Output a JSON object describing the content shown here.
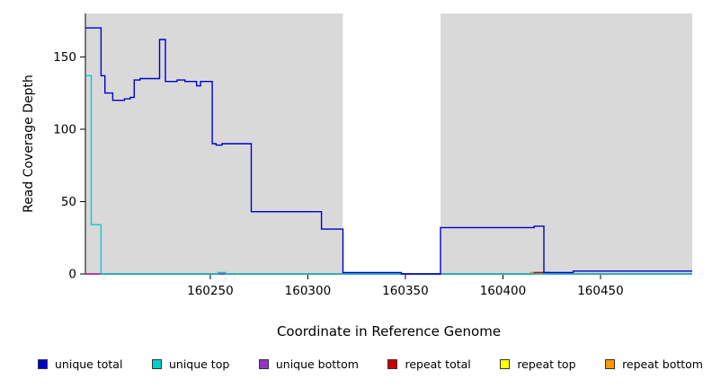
{
  "chart_data": {
    "type": "line",
    "title": "",
    "xlabel": "Coordinate in Reference Genome",
    "ylabel": "Read Coverage Depth",
    "xlim": [
      160186,
      160497
    ],
    "ylim": [
      0,
      180
    ],
    "x_ticks": [
      160250,
      160300,
      160350,
      160400,
      160450
    ],
    "y_ticks": [
      0,
      50,
      100,
      150
    ],
    "grid": false,
    "plot_bg_color": "#d9d9d9",
    "gap_region_color": "#ffffff",
    "background_regions": [
      {
        "from": 160186,
        "to": 160318,
        "color": "#d9d9d9"
      },
      {
        "from": 160318,
        "to": 160368,
        "color": "#ffffff"
      },
      {
        "from": 160368,
        "to": 160497,
        "color": "#d9d9d9"
      }
    ],
    "series": [
      {
        "name": "repeat top",
        "color": "#ffff00",
        "points": [
          [
            160186,
            0
          ],
          [
            160497,
            0
          ]
        ]
      },
      {
        "name": "repeat bottom",
        "color": "#ff9900",
        "points": [
          [
            160186,
            0
          ],
          [
            160414,
            0
          ],
          [
            160414,
            1
          ],
          [
            160421,
            1
          ],
          [
            160421,
            0
          ],
          [
            160497,
            0
          ]
        ]
      },
      {
        "name": "repeat total",
        "color": "#cd0000",
        "points": [
          [
            160186,
            0
          ],
          [
            160416,
            0
          ],
          [
            160416,
            1
          ],
          [
            160424,
            1
          ],
          [
            160424,
            0
          ],
          [
            160497,
            0
          ]
        ]
      },
      {
        "name": "unique bottom",
        "color": "#9932cc",
        "points": [
          [
            160186,
            0
          ],
          [
            160497,
            0
          ]
        ]
      },
      {
        "name": "unique top",
        "color": "#00cdcd",
        "points": [
          [
            160186,
            137
          ],
          [
            160189,
            137
          ],
          [
            160189,
            34
          ],
          [
            160194,
            34
          ],
          [
            160194,
            0
          ],
          [
            160254,
            0
          ],
          [
            160254,
            1
          ],
          [
            160258,
            1
          ],
          [
            160258,
            0
          ],
          [
            160497,
            0
          ]
        ]
      },
      {
        "name": "unique total",
        "color": "#0000cd",
        "points": [
          [
            160186,
            170
          ],
          [
            160194,
            170
          ],
          [
            160194,
            137
          ],
          [
            160196,
            137
          ],
          [
            160196,
            125
          ],
          [
            160200,
            125
          ],
          [
            160200,
            120
          ],
          [
            160206,
            120
          ],
          [
            160206,
            121
          ],
          [
            160209,
            121
          ],
          [
            160209,
            122
          ],
          [
            160211,
            122
          ],
          [
            160211,
            134
          ],
          [
            160214,
            134
          ],
          [
            160214,
            135
          ],
          [
            160224,
            135
          ],
          [
            160224,
            162
          ],
          [
            160227,
            162
          ],
          [
            160227,
            133
          ],
          [
            160233,
            133
          ],
          [
            160233,
            134
          ],
          [
            160237,
            134
          ],
          [
            160237,
            133
          ],
          [
            160243,
            133
          ],
          [
            160243,
            130
          ],
          [
            160245,
            130
          ],
          [
            160245,
            133
          ],
          [
            160251,
            133
          ],
          [
            160251,
            90
          ],
          [
            160253,
            90
          ],
          [
            160253,
            89
          ],
          [
            160256,
            89
          ],
          [
            160256,
            90
          ],
          [
            160271,
            90
          ],
          [
            160271,
            43
          ],
          [
            160307,
            43
          ],
          [
            160307,
            31
          ],
          [
            160318,
            31
          ],
          [
            160318,
            1
          ],
          [
            160348,
            1
          ],
          [
            160348,
            0
          ],
          [
            160368,
            0
          ],
          [
            160368,
            32
          ],
          [
            160416,
            32
          ],
          [
            160416,
            33
          ],
          [
            160421,
            33
          ],
          [
            160421,
            1
          ],
          [
            160436,
            1
          ],
          [
            160436,
            2
          ],
          [
            160497,
            2
          ]
        ]
      }
    ],
    "legend_items": [
      {
        "label": "unique total",
        "color": "#0000cd"
      },
      {
        "label": "unique top",
        "color": "#00cdcd"
      },
      {
        "label": "unique bottom",
        "color": "#9932cc"
      },
      {
        "label": "repeat total",
        "color": "#cd0000"
      },
      {
        "label": "repeat top",
        "color": "#ffff00"
      },
      {
        "label": "repeat bottom",
        "color": "#ff9900"
      }
    ],
    "legend_position": "bottom"
  }
}
